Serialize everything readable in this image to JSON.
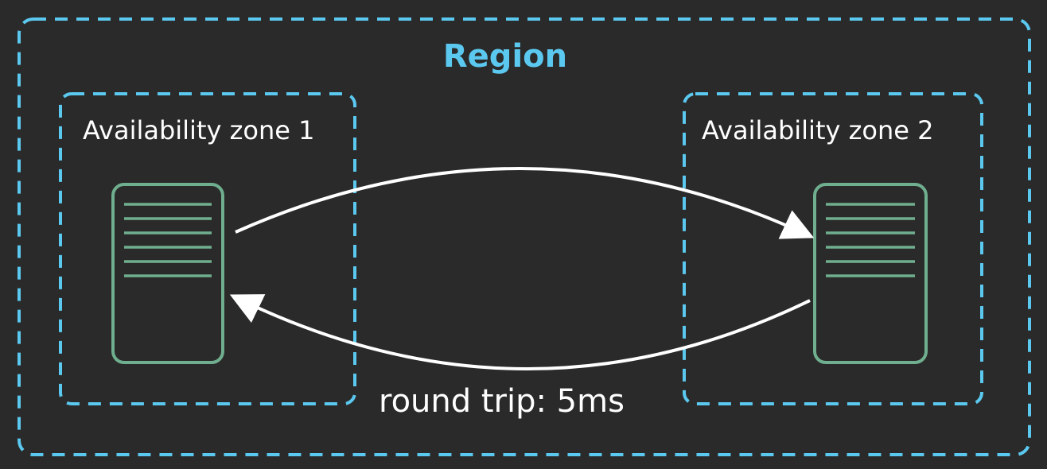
{
  "region": {
    "title": "Region",
    "color": "#5bc8ef"
  },
  "zones": [
    {
      "title": "Availability zone 1"
    },
    {
      "title": "Availability zone 2"
    }
  ],
  "link": {
    "label": "round trip: 5ms"
  },
  "colors": {
    "background": "#2a2a2a",
    "zone_border": "#5bc8ef",
    "server": "#6fae8e",
    "arrow": "#ffffff"
  }
}
